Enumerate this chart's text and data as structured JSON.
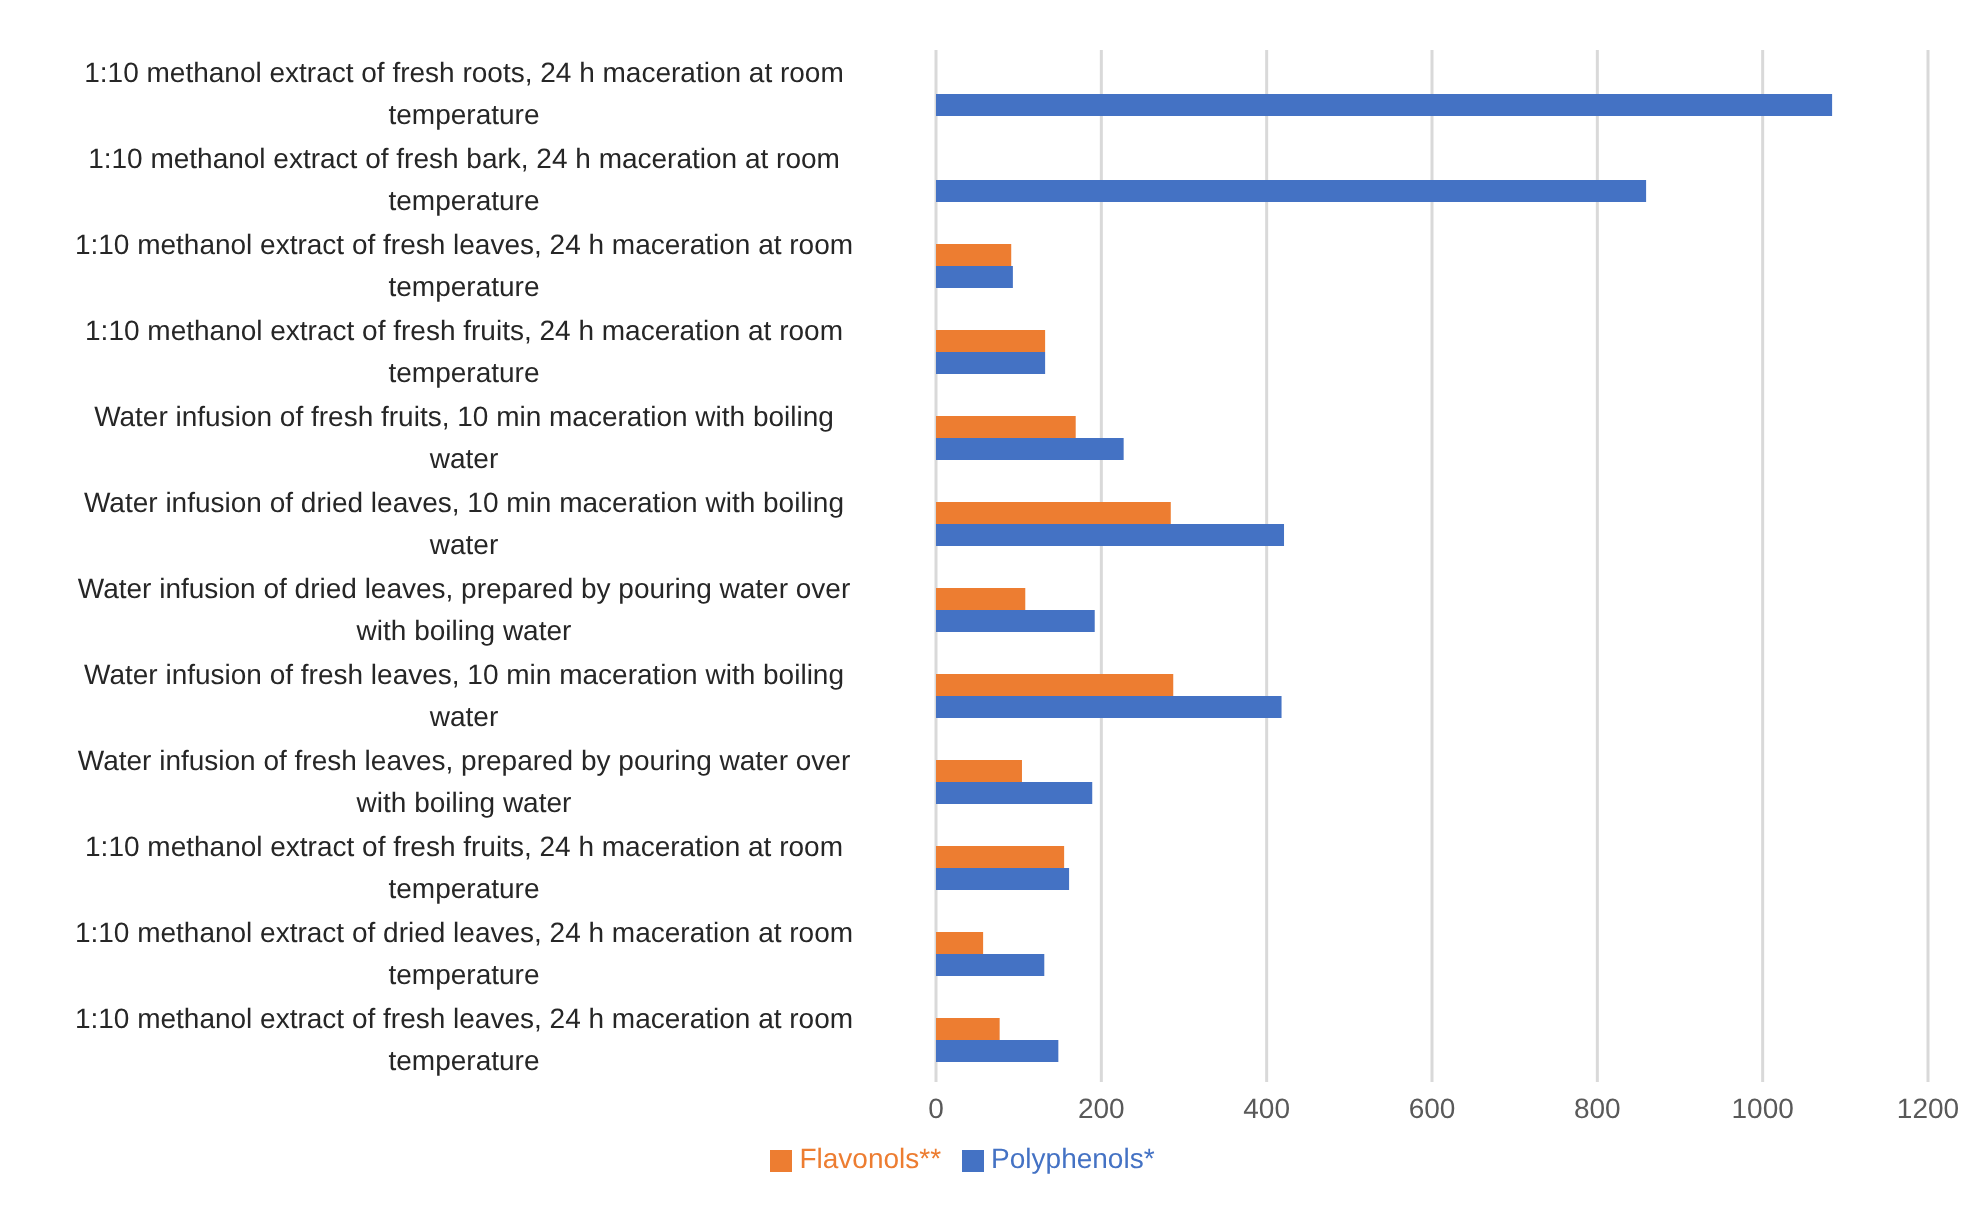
{
  "chart_data": {
    "type": "bar",
    "orientation": "horizontal",
    "categories": [
      "1:10 methanol extract of fresh roots, 24 h maceration at room temperature",
      "1:10 methanol extract of fresh bark, 24 h maceration at room temperature",
      "1:10 methanol extract of fresh leaves, 24 h maceration at room temperature",
      "1:10 methanol extract of fresh fruits, 24 h maceration at room temperature",
      "Water infusion of fresh fruits, 10 min maceration with boiling water",
      "Water infusion of dried leaves, 10 min maceration with boiling water",
      "Water infusion of dried leaves, prepared by pouring water over with boiling water",
      "Water infusion of fresh leaves, 10 min maceration with boiling water",
      "Water infusion of fresh leaves, prepared by pouring water over with boiling water",
      "1:10 methanol extract of fresh fruits, 24 h maceration at room temperature",
      "1:10 methanol extract of dried leaves, 24 h maceration at room temperature",
      "1:10 methanol extract of fresh leaves, 24 h maceration at room temperature"
    ],
    "series": [
      {
        "name": "Flavonols**",
        "color": "#ed7d31",
        "values": [
          null,
          null,
          91,
          132,
          169,
          284,
          108,
          287,
          104,
          155,
          57,
          77
        ]
      },
      {
        "name": "Polyphenols*",
        "color": "#4472c4",
        "values": [
          1084,
          859,
          93,
          132,
          227,
          421,
          192,
          418,
          189,
          161,
          131,
          148
        ]
      }
    ],
    "xlim": [
      0,
      1200
    ],
    "xticks": [
      0,
      200,
      400,
      600,
      800,
      1000,
      1200
    ],
    "grid": "x",
    "legend": "bottom"
  }
}
